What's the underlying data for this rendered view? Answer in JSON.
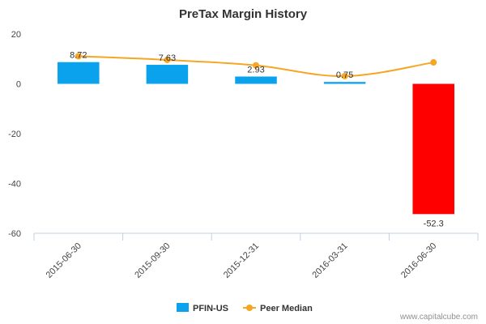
{
  "chart_data": {
    "type": "bar",
    "title": "PreTax Margin History",
    "xlabel": "",
    "ylabel": "",
    "categories": [
      "2015-06-30",
      "2015-09-30",
      "2015-12-31",
      "2016-03-31",
      "2016-06-30"
    ],
    "ylim": [
      -60,
      20
    ],
    "yticks": [
      20,
      0,
      -20,
      -40,
      -60
    ],
    "series": [
      {
        "name": "PFIN-US",
        "type": "bar",
        "values": [
          8.72,
          7.63,
          2.93,
          0.75,
          -52.3
        ],
        "labels": [
          "8.72",
          "7.63",
          "2.93",
          "0.75",
          "-52.3"
        ],
        "color": "#0aa2ec",
        "negative_color": "#ff0000"
      },
      {
        "name": "Peer Median",
        "type": "line",
        "values": [
          11.1,
          9.6,
          7.4,
          3.1,
          8.6
        ],
        "color": "#f6a623"
      }
    ],
    "grid": false,
    "legend": "bottom-center"
  },
  "credit": "www.capitalcube.com"
}
